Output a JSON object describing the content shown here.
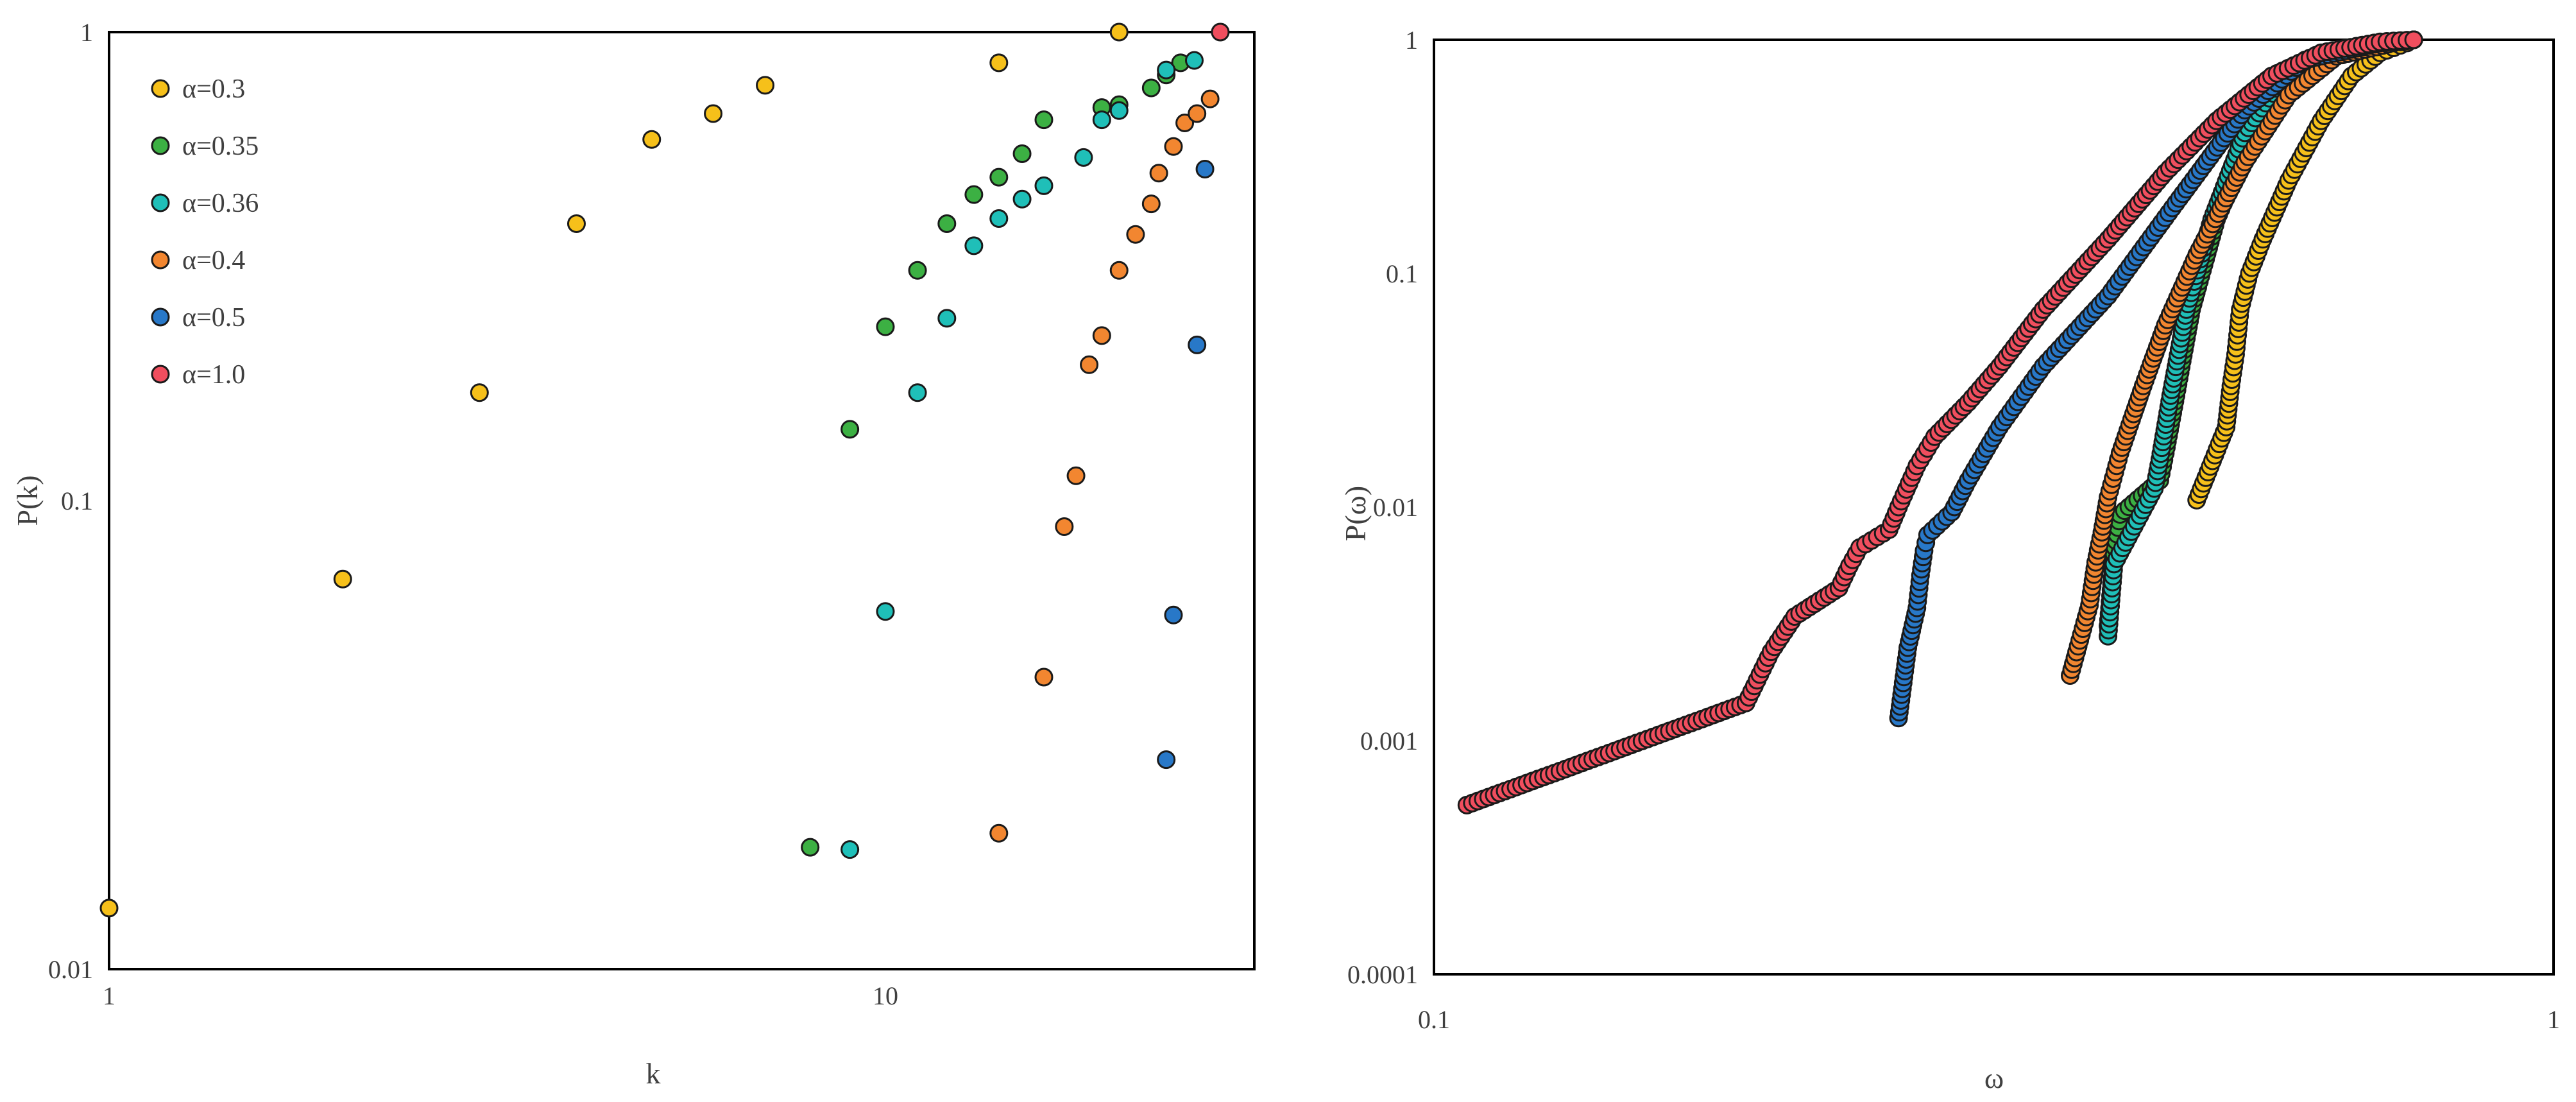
{
  "chart_data": [
    {
      "type": "scatter",
      "xlabel": "k",
      "ylabel": "P(k)",
      "xscale": "log",
      "yscale": "log",
      "xlim": [
        1,
        25
      ],
      "ylim": [
        0.01,
        1
      ],
      "grid": false,
      "legend_position": "top-left",
      "x_ticks": [
        {
          "value": 1,
          "label": "1"
        },
        {
          "value": 10,
          "label": "10"
        }
      ],
      "y_ticks": [
        {
          "value": 0.01,
          "label": "0.01"
        },
        {
          "value": 0.1,
          "label": "0.1"
        },
        {
          "value": 1,
          "label": "1"
        }
      ],
      "series": [
        {
          "name": "α=0.3",
          "color": "#F6C01A",
          "x": [
            1,
            2,
            3,
            4,
            5,
            6,
            7,
            14,
            20
          ],
          "y": [
            0.0135,
            0.068,
            0.17,
            0.39,
            0.59,
            0.67,
            0.77,
            0.86,
            1.0
          ]
        },
        {
          "name": "α=0.35",
          "color": "#3CB043",
          "x": [
            8,
            9,
            10,
            11,
            12,
            13,
            14,
            15,
            16,
            19,
            20,
            22,
            23,
            24
          ],
          "y": [
            0.0182,
            0.142,
            0.235,
            0.31,
            0.39,
            0.45,
            0.49,
            0.55,
            0.65,
            0.69,
            0.7,
            0.76,
            0.81,
            0.86
          ]
        },
        {
          "name": "α=0.36",
          "color": "#1FBFB8",
          "x": [
            9,
            10,
            11,
            12,
            13,
            14,
            15,
            16,
            18,
            19,
            20,
            23,
            25
          ],
          "y": [
            0.018,
            0.058,
            0.17,
            0.245,
            0.35,
            0.4,
            0.44,
            0.47,
            0.54,
            0.65,
            0.68,
            0.83,
            0.87
          ]
        },
        {
          "name": "α=0.4",
          "color": "#F28630",
          "x": [
            14,
            16,
            17,
            17.6,
            18.3,
            19,
            20,
            21,
            22,
            22.5,
            23.5,
            24.3,
            25.2,
            26.2
          ],
          "y": [
            0.0195,
            0.042,
            0.088,
            0.113,
            0.195,
            0.225,
            0.31,
            0.37,
            0.43,
            0.5,
            0.57,
            0.64,
            0.67,
            0.72
          ]
        },
        {
          "name": "α=0.5",
          "color": "#2878C8",
          "x": [
            23,
            23.5,
            25.2,
            25.8
          ],
          "y": [
            0.028,
            0.057,
            0.215,
            0.51
          ]
        },
        {
          "name": "α=1.0",
          "color": "#F04E5E",
          "x": [
            27
          ],
          "y": [
            1.0
          ]
        }
      ]
    },
    {
      "type": "scatter",
      "xlabel": "ω",
      "ylabel": "P(ω)",
      "xscale": "log",
      "yscale": "log",
      "xlim": [
        0.1,
        1
      ],
      "ylim": [
        0.0001,
        1
      ],
      "grid": false,
      "legend": false,
      "x_ticks": [
        {
          "value": 0.1,
          "label": "0.1"
        },
        {
          "value": 1,
          "label": "1"
        }
      ],
      "y_ticks": [
        {
          "value": 0.0001,
          "label": "0.0001"
        },
        {
          "value": 0.001,
          "label": "0.001"
        },
        {
          "value": 0.01,
          "label": "0.01"
        },
        {
          "value": 0.1,
          "label": "0.1"
        },
        {
          "value": 1,
          "label": "1"
        }
      ],
      "series": [
        {
          "name": "α=0.3",
          "color": "#F6C01A",
          "curve": [
            [
              0.48,
              0.0107
            ],
            [
              0.51,
              0.022
            ],
            [
              0.515,
              0.033
            ],
            [
              0.52,
              0.045
            ],
            [
              0.525,
              0.07
            ],
            [
              0.535,
              0.1
            ],
            [
              0.55,
              0.14
            ],
            [
              0.58,
              0.25
            ],
            [
              0.62,
              0.45
            ],
            [
              0.66,
              0.7
            ],
            [
              0.7,
              0.88
            ],
            [
              0.74,
              0.97
            ],
            [
              0.75,
              1.0
            ]
          ]
        },
        {
          "name": "α=0.35",
          "color": "#3CB043",
          "curve": [
            [
              0.4,
              0.0031
            ],
            [
              0.405,
              0.0063
            ],
            [
              0.41,
              0.0093
            ],
            [
              0.445,
              0.013
            ],
            [
              0.45,
              0.017
            ],
            [
              0.46,
              0.03
            ],
            [
              0.475,
              0.07
            ],
            [
              0.5,
              0.17
            ],
            [
              0.54,
              0.4
            ],
            [
              0.58,
              0.65
            ],
            [
              0.63,
              0.85
            ],
            [
              0.7,
              0.97
            ],
            [
              0.75,
              1.0
            ]
          ]
        },
        {
          "name": "α=0.36",
          "color": "#1FBFB8",
          "curve": [
            [
              0.4,
              0.0028
            ],
            [
              0.405,
              0.0057
            ],
            [
              0.44,
              0.012
            ],
            [
              0.445,
              0.016
            ],
            [
              0.455,
              0.03
            ],
            [
              0.47,
              0.07
            ],
            [
              0.495,
              0.17
            ],
            [
              0.53,
              0.4
            ],
            [
              0.57,
              0.65
            ],
            [
              0.62,
              0.86
            ],
            [
              0.7,
              0.97
            ],
            [
              0.75,
              1.0
            ]
          ]
        },
        {
          "name": "α=0.4",
          "color": "#F28630",
          "curve": [
            [
              0.37,
              0.0019
            ],
            [
              0.385,
              0.0038
            ],
            [
              0.39,
              0.0058
            ],
            [
              0.395,
              0.0078
            ],
            [
              0.4,
              0.011
            ],
            [
              0.41,
              0.017
            ],
            [
              0.43,
              0.033
            ],
            [
              0.45,
              0.06
            ],
            [
              0.48,
              0.12
            ],
            [
              0.53,
              0.3
            ],
            [
              0.58,
              0.58
            ],
            [
              0.64,
              0.85
            ],
            [
              0.72,
              0.97
            ],
            [
              0.75,
              1.0
            ]
          ]
        },
        {
          "name": "α=0.5",
          "color": "#2878C8",
          "curve": [
            [
              0.26,
              0.00125
            ],
            [
              0.265,
              0.0025
            ],
            [
              0.27,
              0.0037
            ],
            [
              0.272,
              0.0051
            ],
            [
              0.274,
              0.0065
            ],
            [
              0.276,
              0.0076
            ],
            [
              0.29,
              0.0095
            ],
            [
              0.3,
              0.013
            ],
            [
              0.32,
              0.022
            ],
            [
              0.35,
              0.04
            ],
            [
              0.4,
              0.08
            ],
            [
              0.46,
              0.2
            ],
            [
              0.53,
              0.5
            ],
            [
              0.6,
              0.82
            ],
            [
              0.7,
              0.97
            ],
            [
              0.75,
              1.0
            ]
          ]
        },
        {
          "name": "α=1.0",
          "color": "#F04E5E",
          "curve": [
            [
              0.107,
              0.00053
            ],
            [
              0.19,
              0.00145
            ],
            [
              0.2,
              0.0024
            ],
            [
              0.21,
              0.0034
            ],
            [
              0.23,
              0.0045
            ],
            [
              0.235,
              0.0056
            ],
            [
              0.24,
              0.0067
            ],
            [
              0.255,
              0.008
            ],
            [
              0.26,
              0.01
            ],
            [
              0.27,
              0.015
            ],
            [
              0.28,
              0.02
            ],
            [
              0.3,
              0.028
            ],
            [
              0.32,
              0.04
            ],
            [
              0.35,
              0.07
            ],
            [
              0.4,
              0.14
            ],
            [
              0.45,
              0.27
            ],
            [
              0.5,
              0.45
            ],
            [
              0.56,
              0.7
            ],
            [
              0.62,
              0.88
            ],
            [
              0.7,
              0.98
            ],
            [
              0.75,
              1.0
            ]
          ]
        }
      ]
    }
  ]
}
